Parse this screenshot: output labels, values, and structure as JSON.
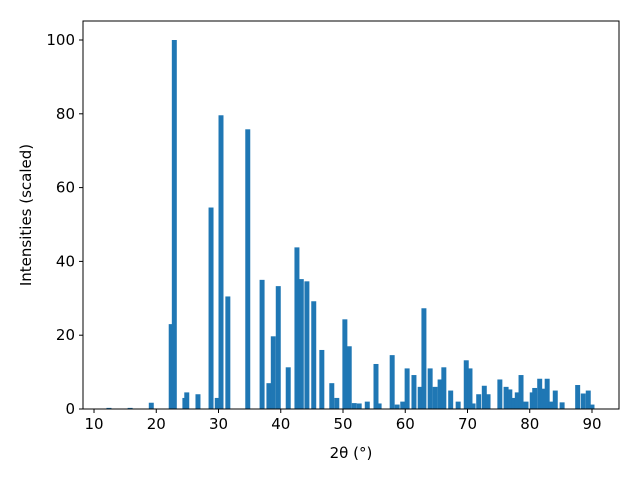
{
  "chart_data": {
    "type": "bar",
    "xlabel": "2θ (°)",
    "ylabel": "Intensities (scaled)",
    "color": "#1f77b4",
    "bar_width": 0.8,
    "x": [
      12.4,
      15.8,
      19.2,
      22.4,
      22.9,
      24.6,
      24.9,
      26.7,
      28.8,
      29.8,
      30.4,
      31.5,
      34.7,
      37.0,
      38.1,
      38.8,
      39.6,
      41.2,
      42.6,
      43.3,
      44.2,
      45.3,
      46.6,
      48.2,
      49.0,
      50.3,
      51.0,
      51.8,
      52.6,
      53.9,
      55.3,
      55.8,
      57.9,
      58.7,
      59.6,
      60.3,
      61.4,
      62.4,
      63.0,
      64.0,
      64.8,
      65.6,
      66.2,
      67.3,
      68.5,
      69.8,
      70.4,
      70.9,
      71.8,
      72.7,
      73.3,
      75.2,
      76.2,
      76.8,
      77.5,
      78.0,
      78.6,
      79.4,
      80.4,
      80.8,
      81.6,
      82.1,
      82.8,
      83.4,
      84.1,
      85.2,
      87.7,
      88.6,
      89.4,
      90.0
    ],
    "values": [
      0.3,
      0.3,
      1.7,
      23,
      100,
      3,
      4.5,
      4,
      54.6,
      3,
      79.6,
      30.5,
      75.8,
      35,
      7,
      19.7,
      33.3,
      11.3,
      43.8,
      35.2,
      34.6,
      29.2,
      16,
      7,
      3,
      24.3,
      17,
      1.6,
      1.5,
      2,
      12.2,
      1.5,
      14.6,
      1.2,
      2,
      11,
      9.2,
      6,
      27.3,
      11,
      6,
      8,
      11.3,
      5,
      2,
      13.2,
      11,
      1.5,
      4,
      6.3,
      4,
      8,
      6,
      5.3,
      3,
      4.5,
      9.2,
      2,
      4.5,
      5.7,
      8.2,
      5.5,
      8.2,
      2,
      5,
      1.8,
      6.5,
      4.2,
      5,
      1.2
    ],
    "xlim": [
      8.23,
      94.34
    ],
    "ylim": [
      0,
      105.15
    ],
    "xticks": [
      10,
      20,
      30,
      40,
      50,
      60,
      70,
      80,
      90
    ],
    "yticks": [
      0,
      20,
      40,
      60,
      80,
      100
    ]
  }
}
